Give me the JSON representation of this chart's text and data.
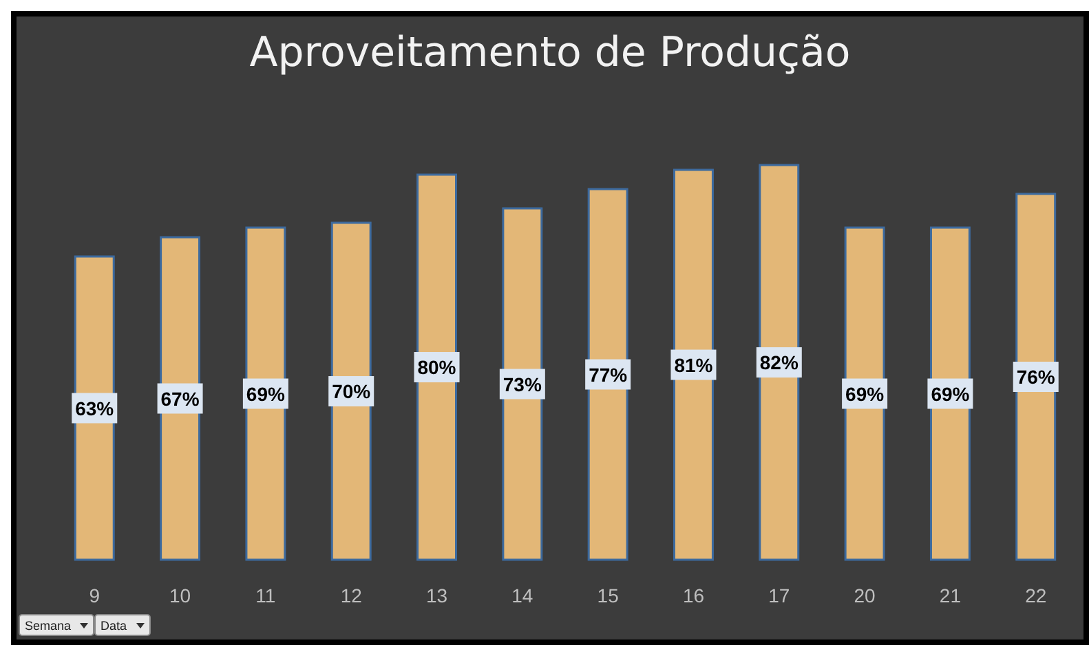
{
  "chart_data": {
    "type": "bar",
    "title": "Aproveitamento de Produção",
    "categories": [
      "9",
      "10",
      "11",
      "12",
      "13",
      "14",
      "15",
      "16",
      "17",
      "20",
      "21",
      "22"
    ],
    "values": [
      63,
      67,
      69,
      70,
      80,
      73,
      77,
      81,
      82,
      69,
      69,
      76
    ],
    "value_labels": [
      "63%",
      "67%",
      "69%",
      "70%",
      "80%",
      "73%",
      "77%",
      "81%",
      "82%",
      "69%",
      "69%",
      "76%"
    ],
    "color": "#e3b777",
    "annotations": [
      "Semana",
      "Data"
    ]
  }
}
